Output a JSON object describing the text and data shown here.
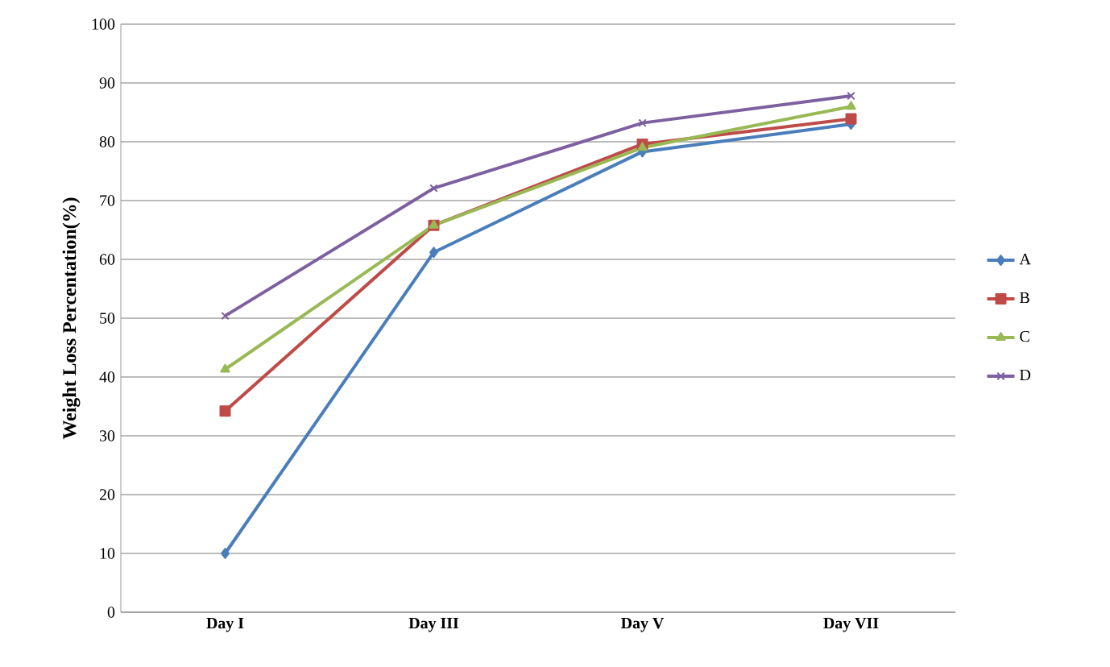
{
  "chart_data": {
    "type": "line",
    "ylabel": "Weight Loss Percentation(%)",
    "categories": [
      "Day I",
      "Day III",
      "Day V",
      "Day VII"
    ],
    "series": [
      {
        "name": "A",
        "color": "#4a7ebb",
        "marker": "diamond",
        "values": [
          10,
          61.2,
          78.3,
          83
        ]
      },
      {
        "name": "B",
        "color": "#be4b48",
        "marker": "square",
        "values": [
          34.2,
          65.8,
          79.6,
          83.9
        ]
      },
      {
        "name": "C",
        "color": "#98b954",
        "marker": "triangle",
        "values": [
          41.3,
          65.8,
          79,
          86
        ]
      },
      {
        "name": "D",
        "color": "#7d60a0",
        "marker": "cross",
        "values": [
          50.4,
          72.1,
          83.2,
          87.8
        ]
      }
    ],
    "ylim": [
      0,
      100
    ],
    "yticks": [
      0,
      10,
      20,
      30,
      40,
      50,
      60,
      70,
      80,
      90,
      100
    ],
    "grid": "y",
    "legend": "right"
  }
}
